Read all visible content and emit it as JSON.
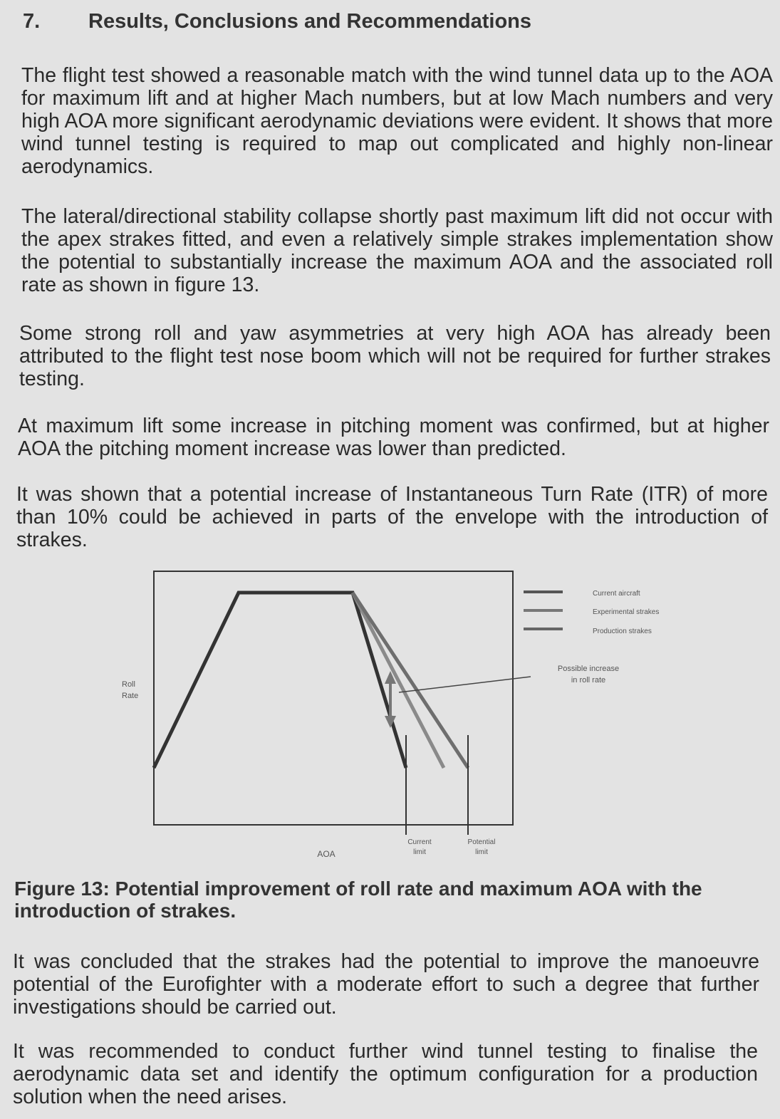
{
  "section": {
    "number": "7.",
    "title": "Results, Conclusions and Recommendations"
  },
  "paragraphs": [
    "The flight test showed a reasonable match with the wind tunnel data up to the AOA for maximum lift and at higher Mach numbers, but at low Mach numbers and very high AOA more significant aerodynamic deviations were evident. It shows that more wind tunnel testing is required to map out complicated and highly non-linear aerodynamics.",
    "The lateral/directional stability collapse shortly past maximum lift did not occur with the apex strakes fitted, and even a relatively simple strakes implementation show the potential to substantially increase the maximum AOA and the associated roll rate as shown in figure 13.",
    "Some strong roll and yaw asymmetries at very high AOA has already been attributed to the flight test nose boom which will not be required for further strakes testing.",
    "At maximum lift some increase in pitching moment was confirmed, but at higher AOA the pitching moment increase was lower than predicted.",
    "It was shown that a potential increase of Instantaneous Turn Rate (ITR) of more than 10% could be achieved in parts of the envelope with the introduction of strakes."
  ],
  "figure": {
    "y_label_line1": "Roll",
    "y_label_line2": "Rate",
    "x_label": "AOA",
    "legend": [
      "Current aircraft",
      "Experimental strakes",
      "Production strakes"
    ],
    "annotation_line1": "Possible increase",
    "annotation_line2": "in roll rate",
    "current_limit_line1": "Current",
    "current_limit_line2": "limit",
    "potential_limit_line1": "Potential",
    "potential_limit_line2": "limit",
    "colors": {
      "current": "#333333",
      "experimental": "#8a8a8a",
      "production": "#6e6e6e"
    }
  },
  "caption": "Figure 13: Potential improvement of roll rate and maximum AOA with the introduction of strakes.",
  "conclusions": [
    "It was concluded that the strakes had the potential to improve the manoeuvre potential of the Eurofighter with a moderate effort to such a degree that further investigations should be carried out.",
    "It was recommended to conduct further wind tunnel testing to finalise the aerodynamic data set and identify the optimum configuration for a production solution when the need arises."
  ]
}
